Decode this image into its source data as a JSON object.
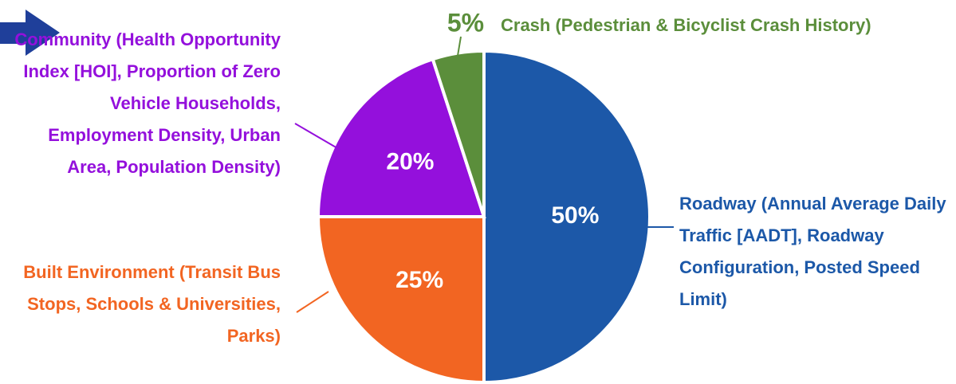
{
  "chart_data": {
    "type": "pie",
    "categories": [
      "Roadway (Annual Average Daily Traffic [AADT], Roadway Configuration, Posted Speed Limit)",
      "Built Environment (Transit Bus Stops, Schools & Universities, Parks)",
      "Community (Health Opportunity Index [HOI], Proportion of Zero Vehicle Households, Employment Density, Urban Area, Population Density)",
      "Crash (Pedestrian & Bicyclist Crash History)"
    ],
    "values": [
      50,
      25,
      20,
      5
    ],
    "value_labels": [
      "50%",
      "25%",
      "20%",
      "5%"
    ],
    "colors": [
      "#1c58a8",
      "#f26522",
      "#9410dc",
      "#5b8e3b"
    ]
  }
}
